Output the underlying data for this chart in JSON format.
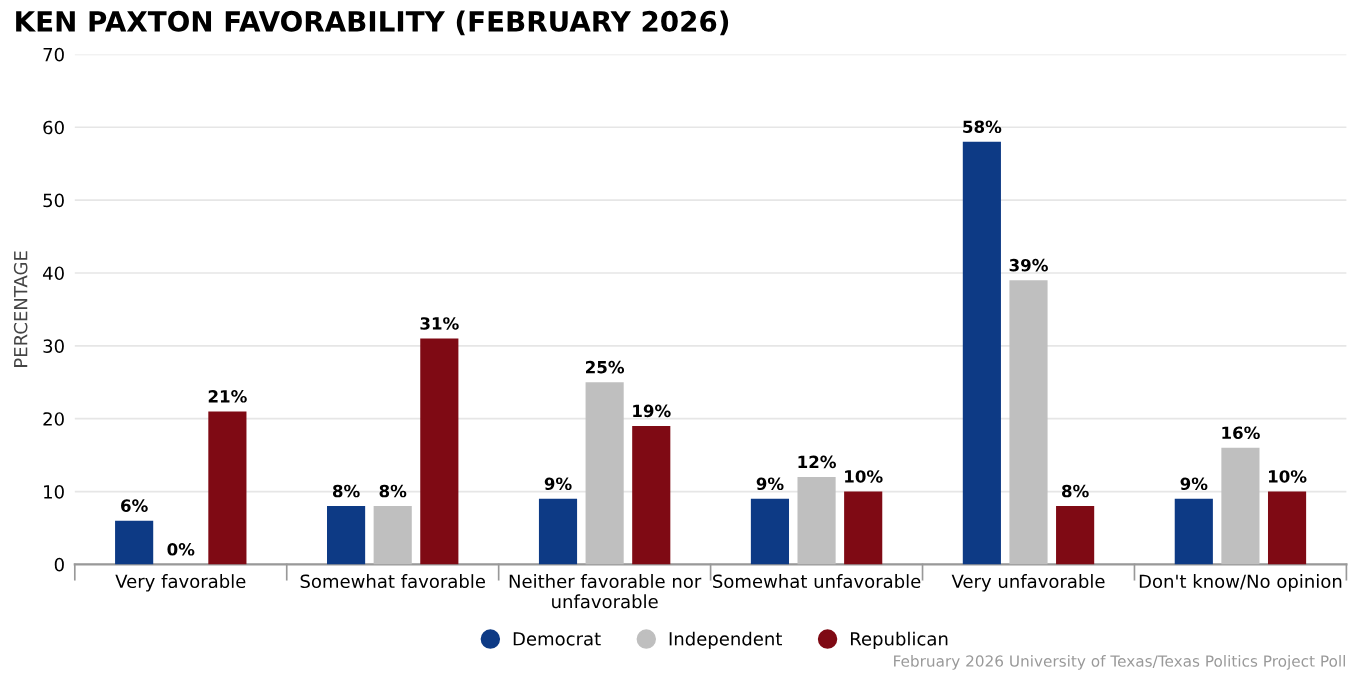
{
  "chart_data": {
    "type": "bar",
    "title": "KEN PAXTON FAVORABILITY (FEBRUARY 2026)",
    "ylabel": "PERCENTAGE",
    "categories": [
      "Very favorable",
      "Somewhat favorable",
      "Neither favorable nor\nunfavorable",
      "Somewhat unfavorable",
      "Very unfavorable",
      "Don't know/No opinion"
    ],
    "series": [
      {
        "name": "Democrat",
        "color": "#0d3a85",
        "values": [
          6,
          8,
          9,
          9,
          58,
          9
        ],
        "value_labels": [
          "6%",
          "8%",
          "9%",
          "9%",
          "58%",
          "9%"
        ]
      },
      {
        "name": "Independent",
        "color": "#bfbfbf",
        "values": [
          0,
          8,
          25,
          12,
          39,
          16
        ],
        "value_labels": [
          "0%",
          "8%",
          "25%",
          "12%",
          "39%",
          "16%"
        ]
      },
      {
        "name": "Republican",
        "color": "#7f0a14",
        "values": [
          21,
          31,
          19,
          10,
          8,
          10
        ],
        "value_labels": [
          "21%",
          "31%",
          "19%",
          "10%",
          "8%",
          "10%"
        ]
      }
    ],
    "ylim": [
      0,
      70
    ],
    "yticks": [
      0,
      10,
      20,
      30,
      40,
      50,
      60,
      70
    ],
    "grid": "y",
    "legend": "bottom",
    "annotations": [
      "February 2026 University of Texas/Texas Politics Project Poll"
    ]
  }
}
